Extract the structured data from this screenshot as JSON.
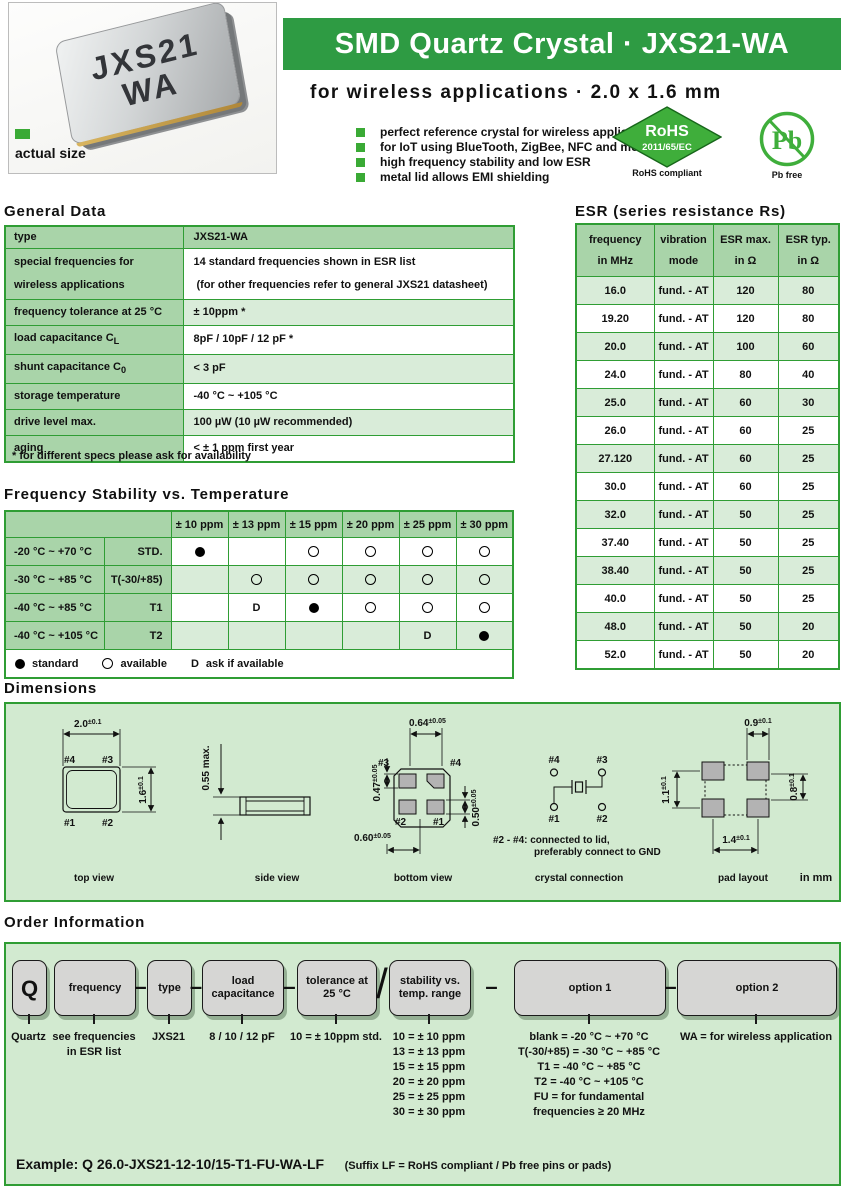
{
  "header": {
    "title": "SMD Quartz Crystal · JXS21-WA",
    "subtitle": "for wireless applications · 2.0 x 1.6 mm",
    "chip_line1": "JXS21",
    "chip_line2": "WA",
    "actual_size": "actual size",
    "features": [
      "perfect reference crystal for wireless applications",
      "for IoT using BlueTooth, ZigBee, NFC and more",
      "high frequency stability and low ESR",
      "metal lid allows EMI shielding"
    ],
    "rohs_title": "RoHS",
    "rohs_sub": "2011/65/EC",
    "rohs_caption": "RoHS compliant",
    "pb_symbol": "Pb",
    "pb_caption": "Pb free"
  },
  "colors": {
    "accent_green": "#2e9b43",
    "table_border": "#2f9d34",
    "cell_green": "#a9d4a9",
    "cell_light": "#d9ecd9",
    "panel_green": "#d2ead0",
    "logo_green": "#3aaa35"
  },
  "general_data": {
    "title": "General Data",
    "header_label": "type",
    "header_value": "JXS21-WA",
    "rows": [
      {
        "label": "special frequencies for",
        "label2": "wireless applications",
        "value": "14 standard frequencies shown in ESR list",
        "value2": "(for other frequencies refer to general JXS21 datasheet)",
        "shaded": false
      },
      {
        "label": "frequency tolerance at 25 °C",
        "value": "± 10ppm *",
        "shaded": true
      },
      {
        "label": "load capacitance C",
        "label_sub": "L",
        "value": "8pF / 10pF / 12 pF *",
        "shaded": false
      },
      {
        "label": "shunt capacitance C",
        "label_sub": "0",
        "value": "< 3 pF",
        "shaded": true
      },
      {
        "label": "storage temperature",
        "value": "-40 °C ~ +105 °C",
        "shaded": false
      },
      {
        "label": "drive level max.",
        "value": "100 µW (10 µW recommended)",
        "shaded": true
      },
      {
        "label": "aging",
        "value": "< ± 1 ppm first year",
        "shaded": false
      }
    ],
    "footnote": "* for different specs please ask for availability"
  },
  "esr": {
    "title": "ESR (series resistance Rs)",
    "col_headers": [
      [
        "frequency",
        "in MHz"
      ],
      [
        "vibration",
        "mode"
      ],
      [
        "ESR max.",
        "in Ω"
      ],
      [
        "ESR typ.",
        "in Ω"
      ]
    ],
    "rows": [
      [
        "16.0",
        "fund. - AT",
        "120",
        "80"
      ],
      [
        "19.20",
        "fund. - AT",
        "120",
        "80"
      ],
      [
        "20.0",
        "fund. - AT",
        "100",
        "60"
      ],
      [
        "24.0",
        "fund. - AT",
        "80",
        "40"
      ],
      [
        "25.0",
        "fund. - AT",
        "60",
        "30"
      ],
      [
        "26.0",
        "fund. - AT",
        "60",
        "25"
      ],
      [
        "27.120",
        "fund. - AT",
        "60",
        "25"
      ],
      [
        "30.0",
        "fund. - AT",
        "60",
        "25"
      ],
      [
        "32.0",
        "fund. - AT",
        "50",
        "25"
      ],
      [
        "37.40",
        "fund. - AT",
        "50",
        "25"
      ],
      [
        "38.40",
        "fund. - AT",
        "50",
        "25"
      ],
      [
        "40.0",
        "fund. - AT",
        "50",
        "25"
      ],
      [
        "48.0",
        "fund. - AT",
        "50",
        "20"
      ],
      [
        "52.0",
        "fund. - AT",
        "50",
        "20"
      ]
    ]
  },
  "stability": {
    "title": "Frequency Stability vs. Temperature",
    "ppm_headers": [
      "± 10 ppm",
      "± 13 ppm",
      "± 15 ppm",
      "± 20 ppm",
      "± 25 ppm",
      "± 30 ppm"
    ],
    "rows": [
      {
        "range": "-20 °C ~ +70 °C",
        "code": "STD.",
        "cells": [
          "filled",
          "",
          "open",
          "open",
          "open",
          "open"
        ],
        "shaded": false
      },
      {
        "range": "-30 °C ~ +85 °C",
        "code": "T(-30/+85)",
        "cells": [
          "",
          "open",
          "open",
          "open",
          "open",
          "open"
        ],
        "shaded": true
      },
      {
        "range": "-40 °C ~ +85 °C",
        "code": "T1",
        "cells": [
          "",
          "D",
          "filled",
          "open",
          "open",
          "open"
        ],
        "shaded": false
      },
      {
        "range": "-40 °C ~ +105 °C",
        "code": "T2",
        "cells": [
          "",
          "",
          "",
          "",
          "D",
          "filled"
        ],
        "shaded": true
      }
    ],
    "legend": [
      {
        "sym": "filled",
        "label": "standard"
      },
      {
        "sym": "open",
        "label": "available"
      },
      {
        "sym": "D",
        "label": "ask if available"
      }
    ]
  },
  "dims": {
    "title": "Dimensions",
    "in_mm": "in mm",
    "top": {
      "caption": "top view",
      "w": "2.0",
      "w_tol": "±0.1",
      "h": "1.6",
      "h_tol": "±0.1",
      "p": [
        "#4",
        "#3",
        "#1",
        "#2"
      ]
    },
    "side": {
      "caption": "side view",
      "h": "0.55 max."
    },
    "bottom": {
      "caption": "bottom view",
      "d1": "0.64",
      "d1_tol": "±0.05",
      "d2": "0.47",
      "d2_tol": "±0.05",
      "d3": "0.60",
      "d3_tol": "±0.05",
      "d4": "0.50",
      "d4_tol": "±0.05",
      "p": [
        "#3",
        "#4",
        "#2",
        "#1"
      ]
    },
    "conn": {
      "caption": "crystal connection",
      "p": [
        "#4",
        "#3",
        "#1",
        "#2"
      ],
      "note1": "#2 - #4: connected to lid,",
      "note2": "preferably connect to GND"
    },
    "pad": {
      "caption": "pad layout",
      "d1": "0.9",
      "d1_tol": "±0.1",
      "d2": "1.1",
      "d2_tol": "±0.1",
      "d3": "0.8",
      "d3_tol": "±0.1",
      "d4": "1.4",
      "d4_tol": "±0.1"
    }
  },
  "order": {
    "title": "Order Information",
    "boxes": [
      {
        "label": [
          "Q"
        ],
        "sep": "",
        "desc": [
          "Quartz"
        ]
      },
      {
        "label": [
          "frequency"
        ],
        "sep": "",
        "desc": [
          "see frequencies",
          "in ESR list"
        ]
      },
      {
        "label": [
          "type"
        ],
        "sep": "–",
        "desc": [
          "JXS21"
        ]
      },
      {
        "label": [
          "load capacitance"
        ],
        "sep": "–",
        "desc": [
          "8 / 10 / 12 pF"
        ]
      },
      {
        "label": [
          "tolerance at",
          "25 °C"
        ],
        "sep": "–",
        "desc": [
          "10 = ± 10ppm std."
        ]
      },
      {
        "label": [
          "stability vs.",
          "temp. range"
        ],
        "sep": "/",
        "desc": [
          "10 = ± 10 ppm",
          "13 = ± 13 ppm",
          "15 = ± 15 ppm",
          "20 = ± 20 ppm",
          "25 = ± 25 ppm",
          "30 = ± 30 ppm"
        ]
      },
      {
        "label": [
          "option 1"
        ],
        "sep": "–",
        "desc": [
          "blank = -20 °C ~ +70 °C",
          "T(-30/+85) = -30 °C ~ +85 °C",
          "T1 = -40 °C ~ +85 °C",
          "T2 = -40 °C ~ +105 °C",
          "FU = for fundamental",
          "frequencies ≥ 20 MHz"
        ]
      },
      {
        "label": [
          "option 2"
        ],
        "sep": "–",
        "desc": [
          "WA = for wireless application"
        ]
      }
    ],
    "example_main": "Example: Q 26.0-JXS21-12-10/15-T1-FU-WA-LF",
    "example_note": "(Suffix LF = RoHS compliant / Pb free pins or pads)"
  }
}
